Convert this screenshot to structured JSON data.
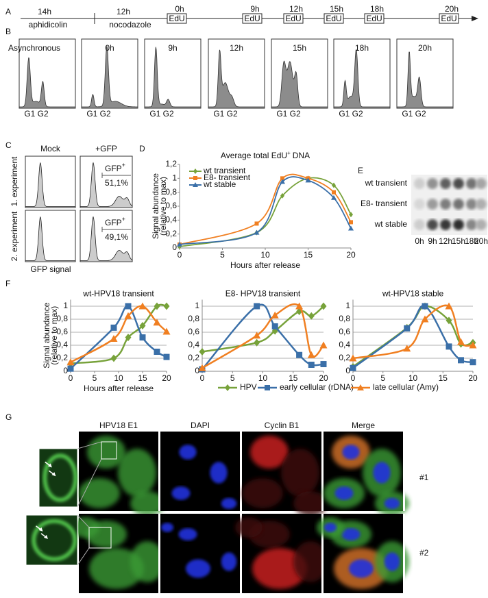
{
  "panel_labels": [
    "A",
    "B",
    "C",
    "D",
    "E",
    "F",
    "G"
  ],
  "timeline": {
    "treatments": [
      {
        "duration": "14h",
        "drug": "aphidicolin"
      },
      {
        "duration": "12h",
        "drug": "nocodazole"
      }
    ],
    "pulse_label": "EdU",
    "timepoints": [
      "0h",
      "9h",
      "12h",
      "15h",
      "18h",
      "20h"
    ]
  },
  "flow": {
    "panels": [
      "Asynchronous",
      "0h",
      "9h",
      "12h",
      "15h",
      "18h",
      "20h"
    ],
    "phase_labels": "G1 G2"
  },
  "gfp": {
    "columns": [
      "Mock",
      "+GFP"
    ],
    "rows": [
      "1. experiment",
      "2. experiment"
    ],
    "gate_label": "GFP",
    "gate_sup": "+",
    "percentages": [
      "51,1%",
      "49,1%"
    ],
    "x_label": "GFP signal"
  },
  "chart_data": [
    {
      "type": "line",
      "title": "Average total EdU",
      "title_sup": "+",
      "title_end": "DNA",
      "y_label": [
        "Signal abundance",
        "(relative to max)"
      ],
      "x_label": "Hours after release",
      "xlim": [
        0,
        20
      ],
      "xticks": [
        0,
        5,
        10,
        15,
        20
      ],
      "ylim": [
        0,
        1.2
      ],
      "yticks": [
        0,
        {
          "value": 0.2,
          "label": "0,2"
        },
        {
          "value": 0.4,
          "label": "0,4"
        },
        {
          "value": 0.6,
          "label": "0,6"
        },
        {
          "value": 0.8,
          "label": "0,8"
        },
        1,
        {
          "value": 1.2,
          "label": "1,2"
        }
      ],
      "grid": false,
      "series": [
        {
          "name": "wt transient",
          "color": "#77a23a",
          "marker": "diamond",
          "x": [
            0,
            9,
            12,
            15,
            18,
            20
          ],
          "values": [
            0.02,
            0.22,
            0.75,
            1.0,
            0.9,
            0.48
          ]
        },
        {
          "name": "E8- transient",
          "color": "#f07f21",
          "marker": "square",
          "x": [
            0,
            9,
            12,
            15,
            18,
            20
          ],
          "values": [
            0.05,
            0.35,
            1.0,
            1.0,
            0.8,
            0.37
          ]
        },
        {
          "name": "wt stable",
          "color": "#3a6fa8",
          "marker": "triangle",
          "x": [
            0,
            9,
            12,
            15,
            18,
            20
          ],
          "values": [
            0.05,
            0.22,
            0.95,
            0.97,
            0.72,
            0.28
          ]
        }
      ]
    },
    {
      "type": "line",
      "title": "wt-HPV18 transient",
      "y_label": [
        "Signal abundance",
        "(relative to max)"
      ],
      "x_label": "Hours after release",
      "xlim": [
        0,
        20
      ],
      "xticks": [
        0,
        5,
        10,
        15,
        20
      ],
      "ylim": [
        0,
        1.1
      ],
      "yticks": [
        0,
        {
          "value": 0.2,
          "label": "0,2"
        },
        {
          "value": 0.4,
          "label": "0,4"
        },
        {
          "value": 0.6,
          "label": "0,6"
        },
        {
          "value": 0.8,
          "label": "0,8"
        },
        1
      ],
      "grid": true,
      "series": [
        {
          "color": "#77a23a",
          "marker": "diamond",
          "x": [
            0,
            9,
            12,
            15,
            18,
            20
          ],
          "values": [
            0.12,
            0.2,
            0.52,
            0.7,
            1.0,
            1.0
          ]
        },
        {
          "color": "#3a6fa8",
          "marker": "square",
          "x": [
            0,
            9,
            12,
            15,
            18,
            20
          ],
          "values": [
            0.04,
            0.67,
            1.0,
            0.52,
            0.3,
            0.22
          ]
        },
        {
          "color": "#f07f21",
          "marker": "triangle",
          "x": [
            0,
            9,
            12,
            15,
            18,
            20
          ],
          "values": [
            0.14,
            0.5,
            0.85,
            1.0,
            0.75,
            0.61
          ]
        }
      ]
    },
    {
      "type": "line",
      "title": "E8- HPV18 transient",
      "xlim": [
        0,
        20
      ],
      "xticks": [
        0,
        5,
        10,
        15,
        20
      ],
      "ylim": [
        0,
        1.1
      ],
      "yticks": [
        0,
        {
          "value": 0.2,
          "label": "0,2"
        },
        {
          "value": 0.4,
          "label": "0,4"
        },
        {
          "value": 0.6,
          "label": "0,6"
        },
        {
          "value": 0.8,
          "label": "0,8"
        },
        1
      ],
      "grid": true,
      "series": [
        {
          "color": "#77a23a",
          "marker": "diamond",
          "x": [
            0,
            9,
            12,
            16,
            18,
            20
          ],
          "values": [
            0.3,
            0.44,
            0.62,
            0.92,
            0.85,
            1.0
          ]
        },
        {
          "color": "#3a6fa8",
          "marker": "square",
          "x": [
            0,
            9,
            12,
            16,
            18,
            20
          ],
          "values": [
            0.03,
            1.0,
            0.69,
            0.25,
            0.1,
            0.11
          ]
        },
        {
          "color": "#f07f21",
          "marker": "triangle",
          "x": [
            0,
            9,
            12,
            16,
            18,
            20
          ],
          "values": [
            0.05,
            0.55,
            0.86,
            1.0,
            0.25,
            0.4
          ]
        }
      ]
    },
    {
      "type": "line",
      "title": "wt-HPV18 stable",
      "xlim": [
        0,
        20
      ],
      "xticks": [
        0,
        5,
        10,
        15,
        20
      ],
      "ylim": [
        0,
        1.1
      ],
      "yticks": [
        0,
        {
          "value": 0.2,
          "label": "0,2"
        },
        {
          "value": 0.4,
          "label": "0,4"
        },
        {
          "value": 0.6,
          "label": "0,6"
        },
        {
          "value": 0.8,
          "label": "0,8"
        },
        1
      ],
      "grid": true,
      "series": [
        {
          "color": "#77a23a",
          "marker": "diamond",
          "x": [
            0,
            9,
            12,
            16,
            18,
            20
          ],
          "values": [
            0.07,
            0.67,
            1.0,
            0.78,
            0.42,
            0.44
          ]
        },
        {
          "color": "#3a6fa8",
          "marker": "square",
          "x": [
            0,
            9,
            12,
            16,
            18,
            20
          ],
          "values": [
            0.05,
            0.66,
            1.0,
            0.38,
            0.17,
            0.14
          ]
        },
        {
          "color": "#f07f21",
          "marker": "triangle",
          "x": [
            0,
            9,
            12,
            16,
            18,
            20
          ],
          "values": [
            0.2,
            0.35,
            0.8,
            1.0,
            0.45,
            0.4
          ]
        }
      ]
    }
  ],
  "f_legend": [
    {
      "name": "HPV",
      "color": "#77a23a",
      "marker": "diamond"
    },
    {
      "name": "early cellular (rDNA)",
      "color": "#3a6fa8",
      "marker": "square"
    },
    {
      "name": "late cellular (Amy)",
      "color": "#f07f21",
      "marker": "triangle"
    }
  ],
  "dot_blot": {
    "rows": [
      "wt transient",
      "E8- transient",
      "wt stable"
    ],
    "columns": [
      "0h",
      "9h",
      "12h",
      "15h",
      "18h",
      "20h"
    ]
  },
  "microscopy": {
    "channels": [
      "HPV18 E1",
      "DAPI",
      "Cyclin B1",
      "Merge"
    ],
    "cells": [
      "#1",
      "#2"
    ]
  }
}
